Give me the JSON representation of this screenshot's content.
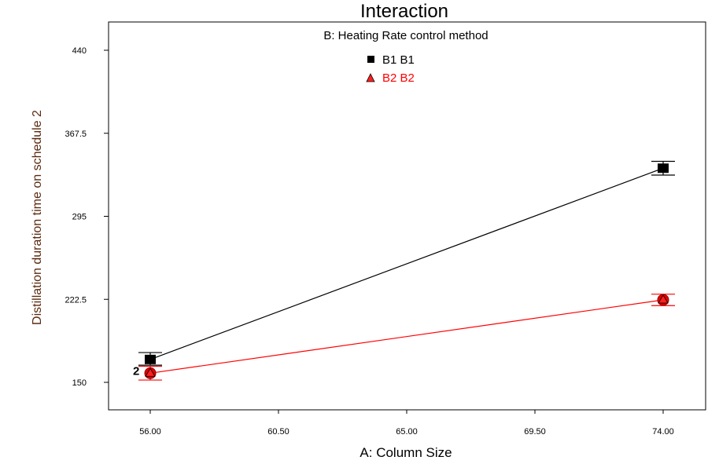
{
  "chart_data": {
    "type": "line",
    "title": "Interaction",
    "xlabel": "A: Column Size",
    "ylabel": "Distillation duration time on schedule 2",
    "xlim": [
      56.0,
      74.0
    ],
    "ylim": [
      150,
      440
    ],
    "x_ticks": [
      "56.00",
      "60.50",
      "65.00",
      "69.50",
      "74.00"
    ],
    "y_ticks": [
      "150",
      "222.5",
      "295",
      "367.5",
      "440"
    ],
    "legend_title": "B: Heating Rate control method",
    "legend_position": "top-center",
    "series": [
      {
        "name": "B1 B1",
        "color": "#000000",
        "marker": "square",
        "x": [
          56.0,
          74.0
        ],
        "y": [
          170,
          337
        ],
        "error": [
          [
            165,
            176
          ],
          [
            331,
            343
          ]
        ]
      },
      {
        "name": "B2 B2",
        "color": "#ff0000",
        "marker": "triangle",
        "x": [
          56.0,
          74.0
        ],
        "y": [
          158,
          222
        ],
        "error": [
          [
            152,
            164
          ],
          [
            217,
            227
          ]
        ]
      }
    ],
    "annotations": [
      {
        "text": "2",
        "x": 56.0,
        "y": 160
      }
    ],
    "grid": false
  }
}
